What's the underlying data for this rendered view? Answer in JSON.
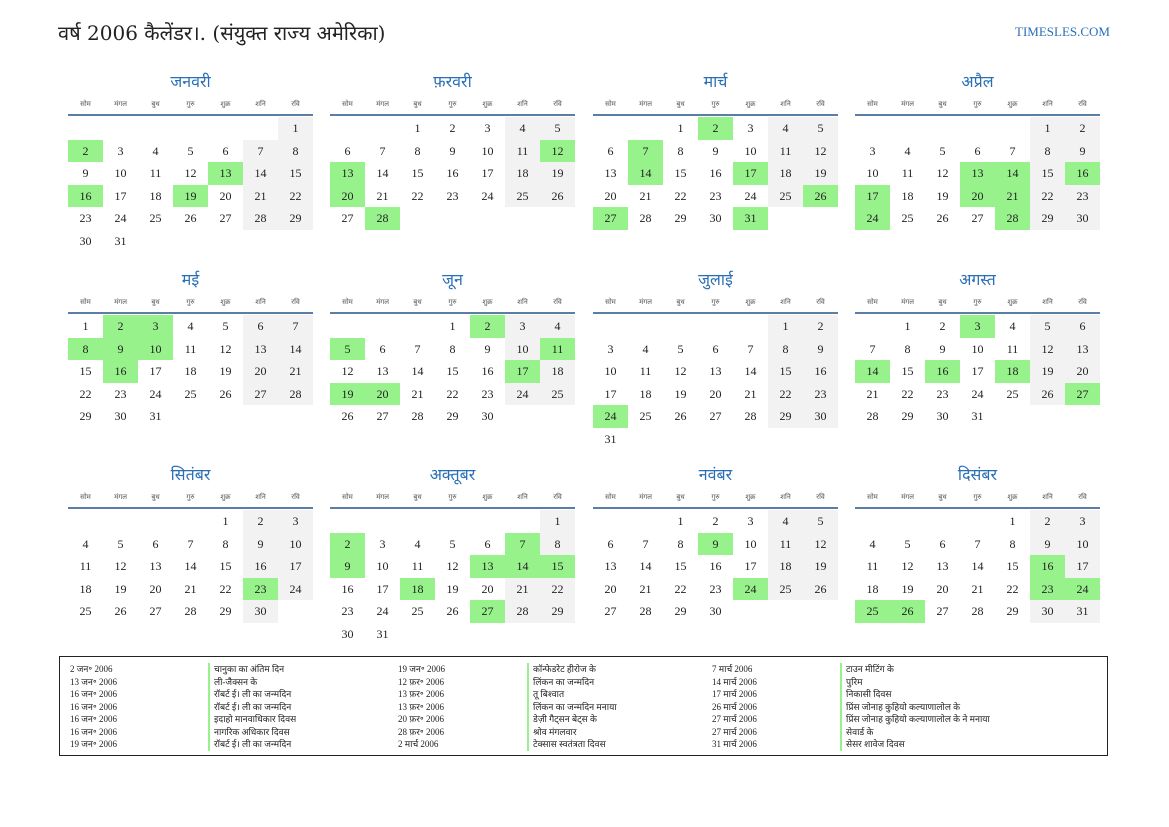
{
  "title": "वर्ष 2006 कैलेंडर।. (संयुक्त राज्य अमेरिका)",
  "site": "TIMESLES.COM",
  "weekdays": [
    "सोम",
    "मंगल",
    "बुध",
    "गुरु",
    "शुक्र",
    "शनि",
    "रवि"
  ],
  "months": [
    {
      "name": "जनवरी",
      "offset": 6,
      "days": 31,
      "holidays": [
        2,
        13,
        16,
        19
      ]
    },
    {
      "name": "फ़रवरी",
      "offset": 2,
      "days": 28,
      "holidays": [
        12,
        13,
        20,
        28
      ]
    },
    {
      "name": "मार्च",
      "offset": 2,
      "days": 31,
      "holidays": [
        2,
        7,
        14,
        17,
        26,
        27,
        31
      ]
    },
    {
      "name": "अप्रैल",
      "offset": 5,
      "days": 30,
      "holidays": [
        13,
        14,
        16,
        17,
        20,
        21,
        24,
        28
      ]
    },
    {
      "name": "मई",
      "offset": 0,
      "days": 31,
      "holidays": [
        2,
        3,
        8,
        9,
        10,
        16
      ]
    },
    {
      "name": "जून",
      "offset": 3,
      "days": 30,
      "holidays": [
        2,
        5,
        11,
        17,
        19,
        20
      ]
    },
    {
      "name": "जुलाई",
      "offset": 5,
      "days": 31,
      "holidays": [
        24
      ]
    },
    {
      "name": "अगस्त",
      "offset": 1,
      "days": 31,
      "holidays": [
        3,
        14,
        16,
        18,
        27
      ]
    },
    {
      "name": "सितंबर",
      "offset": 4,
      "days": 30,
      "holidays": [
        23
      ]
    },
    {
      "name": "अक्तूबर",
      "offset": 6,
      "days": 31,
      "holidays": [
        2,
        7,
        9,
        13,
        14,
        15,
        18,
        27
      ]
    },
    {
      "name": "नवंबर",
      "offset": 2,
      "days": 30,
      "holidays": [
        9,
        24
      ]
    },
    {
      "name": "दिसंबर",
      "offset": 4,
      "days": 31,
      "holidays": [
        16,
        23,
        24,
        25,
        26
      ]
    }
  ],
  "legend": [
    {
      "dates": [
        "2 जन॰ 2006",
        "13 जन॰ 2006",
        "16 जन॰ 2006",
        "16 जन॰ 2006",
        "16 जन॰ 2006",
        "16 जन॰ 2006",
        "19 जन॰ 2006"
      ],
      "names": [
        "चानुका का अंतिम दिन",
        "ली-जैक्सन के",
        "रॉबर्ट ई। ली का जन्मदिन",
        "रॉबर्ट ई। ली का जन्मदिन",
        "इदाहो मानवाधिकार दिवस",
        "नागरिक अधिकार दिवस",
        "रॉबर्ट ई। ली का जन्मदिन"
      ]
    },
    {
      "dates": [
        "19 जन॰ 2006",
        "12 फ़र॰ 2006",
        "13 फ़र॰ 2006",
        "13 फ़र॰ 2006",
        "20 फ़र॰ 2006",
        "28 फ़र॰ 2006",
        "2 मार्च 2006"
      ],
      "names": [
        "कॉन्फेडरेट हीरोज के",
        "लिंकन का जन्मदिन",
        "तू बिश्वात",
        "लिंकन का जन्मदिन मनाया",
        "डेज़ी गैट्सन बेट्स के",
        "श्रोव मंगलवार",
        "टेक्सास स्वतंत्रता दिवस"
      ]
    },
    {
      "dates": [
        "7 मार्च 2006",
        "14 मार्च 2006",
        "17 मार्च 2006",
        "26 मार्च 2006",
        "27 मार्च 2006",
        "27 मार्च 2006",
        "31 मार्च 2006"
      ],
      "names": [
        "टाउन मीटिंग के",
        "पुरिम",
        "निकासी दिवस",
        "प्रिंस जोनाह कुहियो कल्याणालोल के",
        "प्रिंस जोनाह कुहियो कल्याणालोल के ने मनाया",
        "सेवार्ड के",
        "सेसर शावेज दिवस"
      ]
    }
  ]
}
